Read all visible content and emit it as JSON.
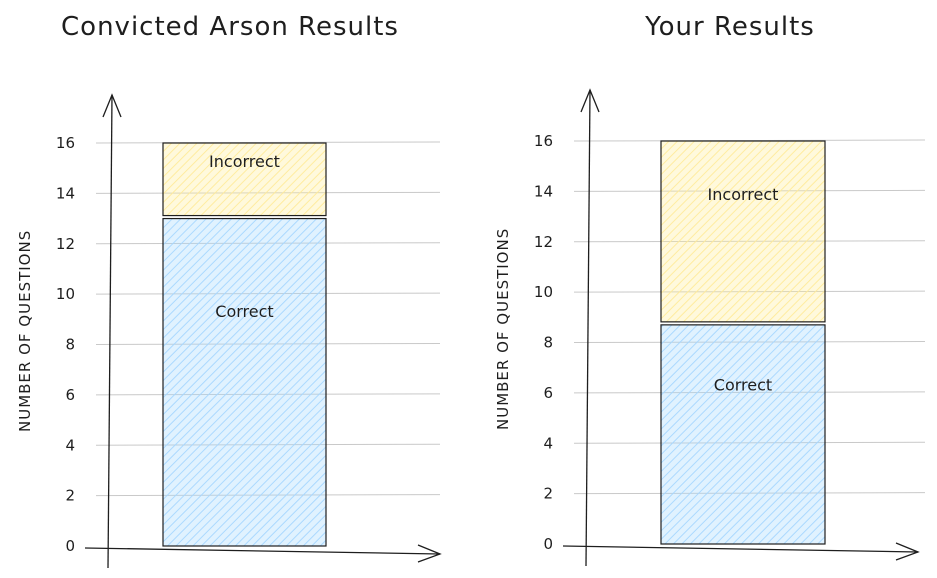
{
  "chart_data": [
    {
      "type": "bar",
      "stacked": true,
      "title": "Convicted Arson Results",
      "ylabel": "NUMBER OF QUESTIONS",
      "xlabel": "",
      "ylim": [
        0,
        16
      ],
      "yticks": [
        "0",
        "2",
        "4",
        "6",
        "8",
        "10",
        "12",
        "14",
        "16"
      ],
      "grid": true,
      "segments": [
        {
          "label": "Correct",
          "value": 13,
          "color": "#a5d8ff"
        },
        {
          "label": "Incorrect",
          "value": 3,
          "color": "#ffec99"
        }
      ]
    },
    {
      "type": "bar",
      "stacked": true,
      "title": "Your Results",
      "ylabel": "NUMBER OF QUESTIONS",
      "xlabel": "",
      "ylim": [
        0,
        16
      ],
      "yticks": [
        "0",
        "2",
        "4",
        "6",
        "8",
        "10",
        "12",
        "14",
        "16"
      ],
      "grid": true,
      "segments": [
        {
          "label": "Correct",
          "value": 8.7,
          "color": "#a5d8ff"
        },
        {
          "label": "Incorrect",
          "value": 7.3,
          "color": "#ffec99"
        }
      ]
    }
  ]
}
